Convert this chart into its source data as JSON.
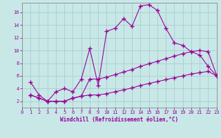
{
  "xlabel": "Windchill (Refroidissement éolien,°C)",
  "background_color": "#c8e8e8",
  "grid_color": "#aacccc",
  "line_color": "#990099",
  "xlim": [
    0,
    23
  ],
  "ylim": [
    1,
    17.5
  ],
  "yticks": [
    2,
    4,
    6,
    8,
    10,
    12,
    14,
    16
  ],
  "xticks": [
    0,
    1,
    2,
    3,
    4,
    5,
    6,
    7,
    8,
    9,
    10,
    11,
    12,
    13,
    14,
    15,
    16,
    17,
    18,
    19,
    20,
    21,
    22,
    23
  ],
  "line1_x": [
    1,
    2,
    3,
    4,
    5,
    6,
    7,
    8,
    9,
    10,
    11,
    12,
    13,
    14,
    15,
    16,
    17,
    18,
    19,
    20,
    21,
    22,
    23
  ],
  "line1_y": [
    5,
    3,
    2,
    3.5,
    4,
    3.5,
    5.5,
    10.3,
    4.5,
    13,
    13.5,
    15,
    13.8,
    17,
    17.2,
    16.3,
    13.5,
    11.2,
    10.8,
    9.8,
    9.3,
    7.5,
    6.0
  ],
  "line2_x": [
    1,
    2,
    3,
    4,
    5,
    6,
    7,
    8,
    9,
    10,
    11,
    12,
    13,
    14,
    15,
    16,
    17,
    18,
    19,
    20,
    21,
    22,
    23
  ],
  "line2_y": [
    3,
    2.5,
    2.0,
    2.0,
    2.0,
    2.5,
    2.8,
    5.5,
    5.5,
    5.8,
    6.2,
    6.6,
    7.0,
    7.5,
    7.9,
    8.3,
    8.7,
    9.1,
    9.5,
    9.8,
    10.0,
    9.8,
    6.1
  ],
  "line3_x": [
    1,
    2,
    3,
    4,
    5,
    6,
    7,
    8,
    9,
    10,
    11,
    12,
    13,
    14,
    15,
    16,
    17,
    18,
    19,
    20,
    21,
    22,
    23
  ],
  "line3_y": [
    3,
    2.5,
    2.0,
    2.0,
    2.0,
    2.5,
    2.8,
    3.0,
    3.0,
    3.2,
    3.5,
    3.8,
    4.1,
    4.5,
    4.8,
    5.1,
    5.4,
    5.7,
    6.0,
    6.3,
    6.5,
    6.7,
    6.0
  ],
  "marker": "+",
  "markersize": 4,
  "linewidth": 0.8,
  "xlabel_fontsize": 5.5,
  "tick_fontsize": 5.0
}
